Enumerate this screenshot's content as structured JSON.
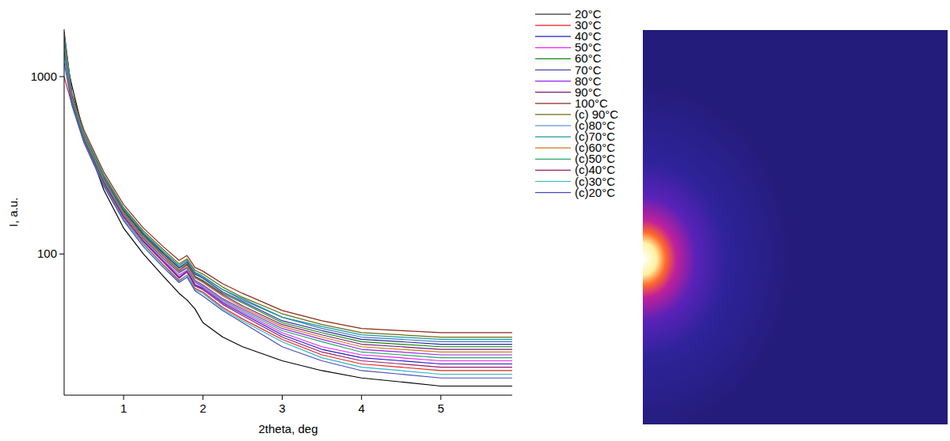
{
  "chart_data": {
    "type": "line",
    "x_label": "2theta, deg",
    "y_label": "I, a.u.",
    "log": "y",
    "grid": false,
    "legend": "right",
    "xlim": [
      0.25,
      5.9
    ],
    "xticks": [
      1,
      2,
      3,
      4,
      5
    ],
    "ylim": [
      16,
      1850
    ],
    "yticks": [
      100,
      1000
    ],
    "x": [
      0.25,
      0.35,
      0.5,
      0.75,
      1,
      1.25,
      1.5,
      1.7,
      1.8,
      1.9,
      2,
      2.25,
      2.5,
      3,
      3.5,
      4,
      4.5,
      5,
      5.5,
      5.9
    ],
    "series": [
      {
        "name": "20°C",
        "color": "#000000",
        "values": [
          1400,
          880,
          470,
          230,
          140,
          100,
          75,
          60,
          55,
          49,
          41,
          34,
          30,
          25,
          22,
          20,
          19,
          18,
          18,
          18
        ]
      },
      {
        "name": "30°C",
        "color": "#e8211d",
        "values": [
          1000,
          694,
          430,
          246,
          158,
          114,
          87,
          71,
          76,
          64,
          61,
          50,
          43,
          33,
          27,
          24,
          23,
          22,
          22,
          22
        ]
      },
      {
        "name": "40°C",
        "color": "#1d1dcc",
        "values": [
          1700,
          712,
          442,
          253,
          163,
          118,
          91,
          74,
          80,
          67,
          64,
          53,
          46,
          35,
          29,
          26,
          25,
          24,
          24,
          24
        ]
      },
      {
        "name": "50°C",
        "color": "#ee22ee",
        "values": [
          1500,
          720,
          447,
          256,
          165,
          120,
          92,
          76,
          81,
          69,
          65,
          54,
          47,
          36,
          30,
          27,
          26,
          25,
          25,
          25
        ]
      },
      {
        "name": "60°C",
        "color": "#118811",
        "values": [
          1550,
          748,
          466,
          269,
          175,
          128,
          100,
          83,
          88,
          75,
          71,
          60,
          53,
          41,
          36,
          32,
          31,
          30,
          30,
          30
        ]
      },
      {
        "name": "70°C",
        "color": "#2a2a99",
        "values": [
          1800,
          757,
          472,
          272,
          177,
          130,
          101,
          84,
          90,
          77,
          73,
          61,
          54,
          42,
          37,
          33,
          32,
          31,
          31,
          31
        ]
      },
      {
        "name": "80°C",
        "color": "#9922ee",
        "values": [
          1600,
          730,
          454,
          261,
          169,
          123,
          95,
          79,
          84,
          71,
          67,
          56,
          49,
          38,
          33,
          29,
          28,
          27,
          27,
          27
        ]
      },
      {
        "name": "90°C",
        "color": "#7a1a7a",
        "values": [
          1500,
          740,
          460,
          265,
          172,
          126,
          98,
          81,
          87,
          74,
          70,
          59,
          51,
          40,
          35,
          31,
          30,
          29,
          29,
          29
        ]
      },
      {
        "name": "100°C",
        "color": "#8a2a1a",
        "values": [
          1750,
          800,
          500,
          290,
          190,
          140,
          110,
          92,
          98,
          84,
          80,
          68,
          60,
          48,
          42,
          38,
          37,
          36,
          36,
          36
        ]
      },
      {
        "name": "(c) 90°C",
        "color": "#6b6b12",
        "values": [
          1700,
          775,
          484,
          280,
          183,
          135,
          106,
          88,
          94,
          81,
          77,
          65,
          57,
          46,
          40,
          36,
          35,
          34,
          34,
          34
        ]
      },
      {
        "name": "(c)80°C",
        "color": "#3a7ac0",
        "values": [
          1600,
          765,
          477,
          276,
          180,
          132,
          103,
          86,
          92,
          78,
          74,
          63,
          55,
          44,
          38,
          34,
          33,
          32,
          32,
          32
        ]
      },
      {
        "name": "(c)70°C",
        "color": "#1a9a9a",
        "values": [
          1650,
          759,
          474,
          274,
          179,
          132,
          103,
          86,
          92,
          79,
          75,
          63,
          56,
          44,
          39,
          35,
          34,
          33,
          33,
          33
        ]
      },
      {
        "name": "(c)60°C",
        "color": "#c8781a",
        "values": [
          1450,
          739,
          459,
          264,
          171,
          125,
          97,
          80,
          86,
          73,
          69,
          58,
          50,
          39,
          34,
          30,
          29,
          28,
          28,
          28
        ]
      },
      {
        "name": "(c)50°C",
        "color": "#22aa6a",
        "values": [
          1400,
          729,
          453,
          260,
          168,
          122,
          94,
          78,
          83,
          70,
          66,
          55,
          48,
          37,
          32,
          28,
          27,
          26,
          26,
          26
        ]
      },
      {
        "name": "(c)40°C",
        "color": "#9a1a6a",
        "values": [
          1350,
          711,
          441,
          252,
          162,
          117,
          90,
          73,
          79,
          66,
          63,
          52,
          45,
          34,
          28,
          25,
          24,
          23,
          23,
          23
        ]
      },
      {
        "name": "(c)30°C",
        "color": "#2ab8c8",
        "values": [
          1300,
          693,
          429,
          245,
          157,
          113,
          86,
          70,
          76,
          63,
          60,
          49,
          42,
          32,
          26,
          23,
          22,
          21,
          21,
          21
        ]
      },
      {
        "name": "(c)20°C",
        "color": "#4a4ab8",
        "values": [
          1200,
          685,
          424,
          241,
          154,
          110,
          84,
          69,
          74,
          62,
          58,
          48,
          41,
          30,
          25,
          22,
          21,
          20,
          20,
          20
        ]
      }
    ]
  }
}
